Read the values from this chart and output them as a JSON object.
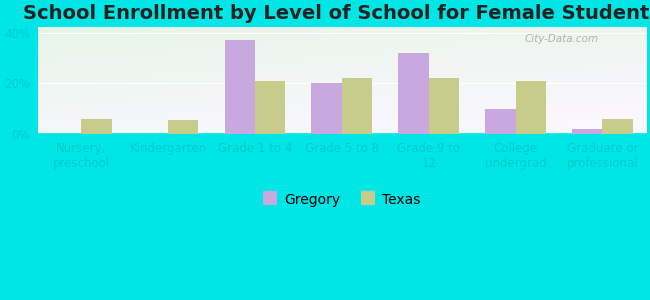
{
  "title": "School Enrollment by Level of School for Female Students",
  "categories": [
    "Nursery,\npreschool",
    "Kindergarten",
    "Grade 1 to 4",
    "Grade 5 to 8",
    "Grade 9 to\n12",
    "College\nundergrad",
    "Graduate or\nprofessional"
  ],
  "gregory": [
    0,
    0,
    37,
    20,
    32,
    10,
    2
  ],
  "texas": [
    6,
    5.5,
    21,
    22,
    22,
    21,
    6
  ],
  "gregory_color": "#c9a8e0",
  "texas_color": "#c8cc8a",
  "background_color": "#00e5e5",
  "ylim": [
    0,
    42
  ],
  "yticks": [
    0,
    20,
    40
  ],
  "ytick_labels": [
    "0%",
    "20%",
    "40%"
  ],
  "bar_width": 0.35,
  "title_fontsize": 14,
  "tick_fontsize": 8.5,
  "legend_fontsize": 10,
  "tick_label_color": "#00cccc",
  "watermark": "City-Data.com"
}
